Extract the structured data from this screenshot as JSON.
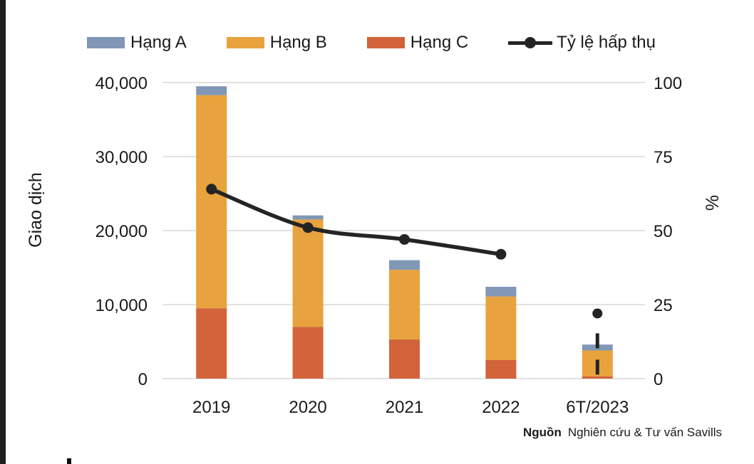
{
  "chart_data": {
    "type": "bar",
    "subtype": "stacked-bar-with-line-combo",
    "categories": [
      "2019",
      "2020",
      "2021",
      "2022",
      "6T/2023"
    ],
    "series": [
      {
        "name": "Hạng A",
        "type": "bar",
        "axis": "left",
        "color": "#8097b6",
        "values": [
          1200,
          550,
          1300,
          1300,
          800
        ]
      },
      {
        "name": "Hạng B",
        "type": "bar",
        "axis": "left",
        "color": "#e8a33e",
        "values": [
          28800,
          14500,
          9400,
          8600,
          3500
        ]
      },
      {
        "name": "Hạng C",
        "type": "bar",
        "axis": "left",
        "color": "#d2633a",
        "values": [
          9500,
          7000,
          5300,
          2500,
          300
        ]
      },
      {
        "name": "Tỷ lệ hấp thụ",
        "type": "line",
        "axis": "right",
        "color": "#242424",
        "values": [
          64,
          51,
          47,
          42,
          22
        ],
        "connected_through_index": 3,
        "isolated_last_point": true
      }
    ],
    "dashed_segment": {
      "category": "6T/2023",
      "from_pct": 15.3,
      "to_pct": 1
    },
    "left_axis": {
      "title": "Giao dịch",
      "min": 0,
      "max": 40000,
      "ticks": [
        "40,000",
        "30,000",
        "20,000",
        "10,000",
        "0"
      ]
    },
    "right_axis": {
      "title": "%",
      "min": 0,
      "max": 100,
      "ticks": [
        "100",
        "75",
        "50",
        "25",
        "0"
      ]
    },
    "grid": {
      "shown": true,
      "color": "#d9d9d9"
    },
    "legend_position": "top",
    "source": {
      "label": "Nguồn",
      "text": "Nghiên cứu & Tư vấn Savills"
    }
  }
}
